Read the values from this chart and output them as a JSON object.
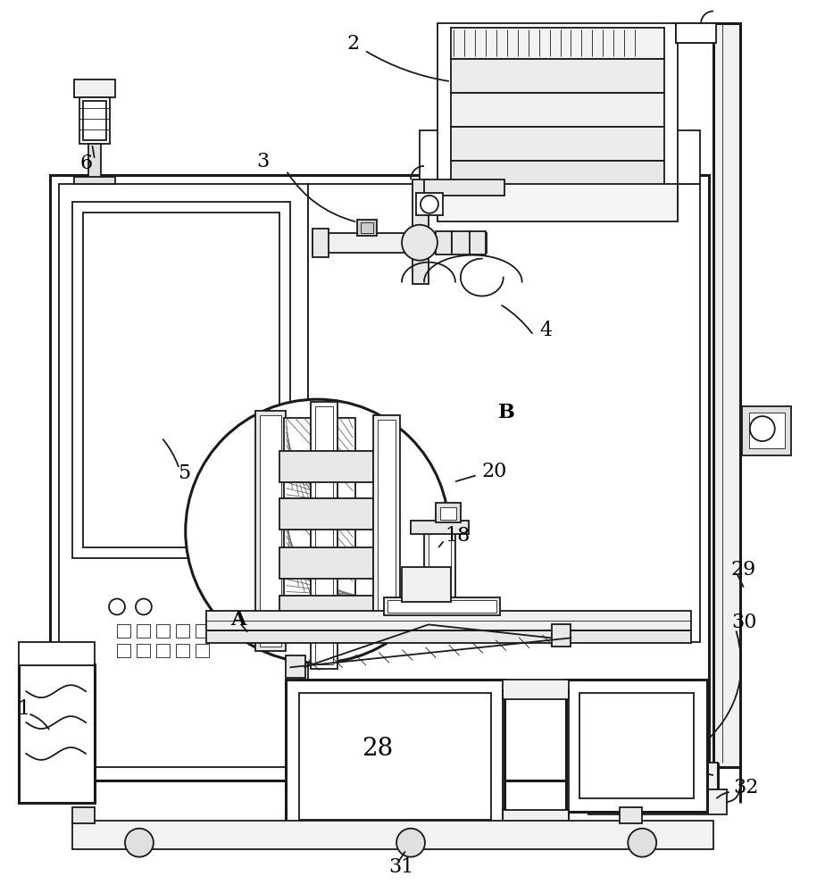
{
  "bg_color": "#ffffff",
  "lc": "#1a1a1a",
  "lw": 1.3,
  "lw2": 2.2,
  "lw_thin": 0.6
}
